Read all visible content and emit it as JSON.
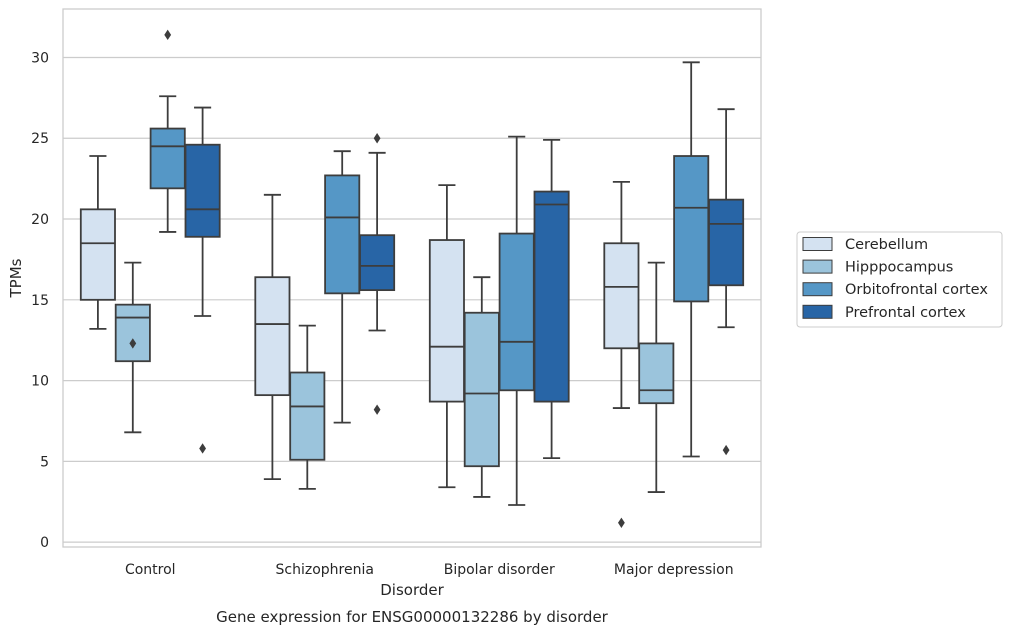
{
  "chart_data": {
    "type": "box",
    "caption": "Gene expression for ENSG00000132286 by disorder",
    "xlabel": "Disorder",
    "ylabel": "TPMs",
    "ylim": [
      -0.3,
      33
    ],
    "yticks": [
      0,
      5,
      10,
      15,
      20,
      25,
      30
    ],
    "grid": "horizontal",
    "legend_position": "right",
    "categories": [
      "Control",
      "Schizophrenia",
      "Bipolar disorder",
      "Major depression"
    ],
    "series": [
      {
        "name": "Cerebellum",
        "color": "#d4e2f1",
        "boxes": [
          {
            "whislo": 13.2,
            "q1": 15.0,
            "med": 18.5,
            "q3": 20.6,
            "whishi": 23.9,
            "fliers": []
          },
          {
            "whislo": 3.9,
            "q1": 9.1,
            "med": 13.5,
            "q3": 16.4,
            "whishi": 21.5,
            "fliers": []
          },
          {
            "whislo": 3.4,
            "q1": 8.7,
            "med": 12.1,
            "q3": 18.7,
            "whishi": 22.1,
            "fliers": []
          },
          {
            "whislo": 8.3,
            "q1": 12.0,
            "med": 15.8,
            "q3": 18.5,
            "whishi": 22.3,
            "fliers": [
              1.2
            ]
          }
        ]
      },
      {
        "name": "Hipppocampus",
        "color": "#9bc4dc",
        "boxes": [
          {
            "whislo": 6.8,
            "q1": 11.2,
            "med": 13.9,
            "q3": 14.7,
            "whishi": 17.3,
            "fliers": [
              12.3
            ]
          },
          {
            "whislo": 3.3,
            "q1": 5.1,
            "med": 8.4,
            "q3": 10.5,
            "whishi": 13.4,
            "fliers": []
          },
          {
            "whislo": 2.8,
            "q1": 4.7,
            "med": 9.2,
            "q3": 14.2,
            "whishi": 16.4,
            "fliers": []
          },
          {
            "whislo": 3.1,
            "q1": 8.6,
            "med": 9.4,
            "q3": 12.3,
            "whishi": 17.3,
            "fliers": []
          }
        ]
      },
      {
        "name": "Orbitofrontal cortex",
        "color": "#5597c6",
        "boxes": [
          {
            "whislo": 19.2,
            "q1": 21.9,
            "med": 24.5,
            "q3": 25.6,
            "whishi": 27.6,
            "fliers": [
              31.4
            ]
          },
          {
            "whislo": 7.4,
            "q1": 15.4,
            "med": 20.1,
            "q3": 22.7,
            "whishi": 24.2,
            "fliers": []
          },
          {
            "whislo": 2.3,
            "q1": 9.4,
            "med": 12.4,
            "q3": 19.1,
            "whishi": 25.1,
            "fliers": []
          },
          {
            "whislo": 5.3,
            "q1": 14.9,
            "med": 20.7,
            "q3": 23.9,
            "whishi": 29.7,
            "fliers": []
          }
        ]
      },
      {
        "name": "Prefrontal cortex",
        "color": "#2865a6",
        "boxes": [
          {
            "whislo": 14.0,
            "q1": 18.9,
            "med": 20.6,
            "q3": 24.6,
            "whishi": 26.9,
            "fliers": [
              5.8
            ]
          },
          {
            "whislo": 13.1,
            "q1": 15.6,
            "med": 17.1,
            "q3": 19.0,
            "whishi": 24.1,
            "fliers": [
              8.2,
              25.0
            ]
          },
          {
            "whislo": 5.2,
            "q1": 8.7,
            "med": 20.9,
            "q3": 21.7,
            "whishi": 24.9,
            "fliers": []
          },
          {
            "whislo": 13.3,
            "q1": 15.9,
            "med": 19.7,
            "q3": 21.2,
            "whishi": 26.8,
            "fliers": [
              5.7
            ]
          }
        ]
      }
    ]
  }
}
